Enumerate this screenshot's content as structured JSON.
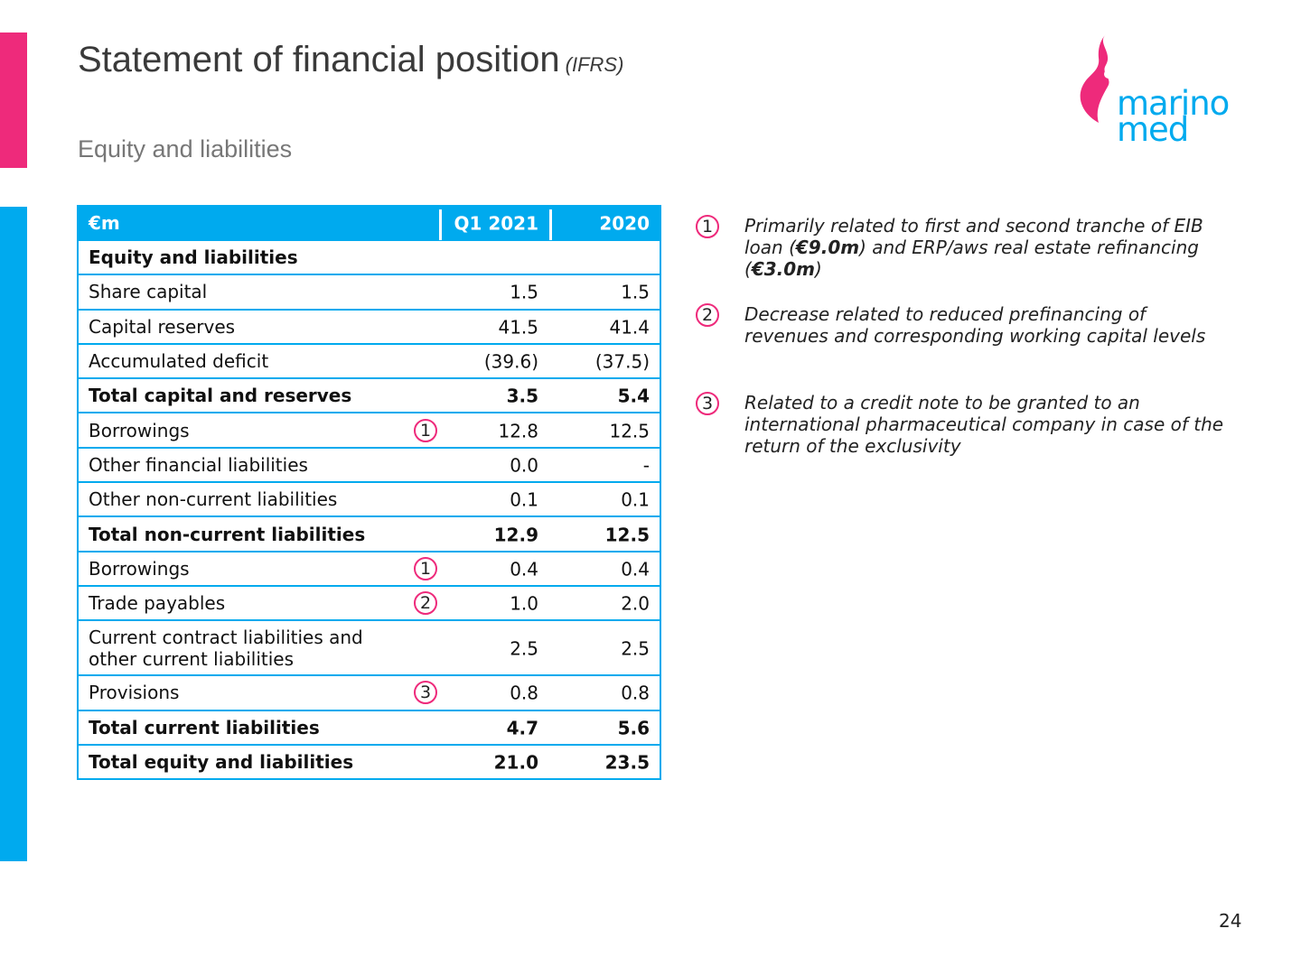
{
  "title": "Statement of financial position",
  "title_suffix": "(IFRS)",
  "subtitle": "Equity and liabilities",
  "logo": {
    "line1": "marino",
    "line2": "med"
  },
  "table": {
    "headers": [
      "€m",
      "Q1 2021",
      "2020"
    ],
    "rows": [
      {
        "label": "Equity and liabilities",
        "q1_2021": "",
        "y2020": "",
        "bold": true,
        "note": ""
      },
      {
        "label": "Share capital",
        "q1_2021": "1.5",
        "y2020": "1.5",
        "bold": false,
        "note": ""
      },
      {
        "label": "Capital reserves",
        "q1_2021": "41.5",
        "y2020": "41.4",
        "bold": false,
        "note": ""
      },
      {
        "label": "Accumulated deficit",
        "q1_2021": "(39.6)",
        "y2020": "(37.5)",
        "bold": false,
        "note": ""
      },
      {
        "label": "Total capital and reserves",
        "q1_2021": "3.5",
        "y2020": "5.4",
        "bold": true,
        "note": ""
      },
      {
        "label": "Borrowings",
        "q1_2021": "12.8",
        "y2020": "12.5",
        "bold": false,
        "note": "1"
      },
      {
        "label": "Other financial liabilities",
        "q1_2021": "0.0",
        "y2020": "-",
        "bold": false,
        "note": ""
      },
      {
        "label": "Other non-current liabilities",
        "q1_2021": "0.1",
        "y2020": "0.1",
        "bold": false,
        "note": ""
      },
      {
        "label": "Total non-current liabilities",
        "q1_2021": "12.9",
        "y2020": "12.5",
        "bold": true,
        "note": ""
      },
      {
        "label": "Borrowings",
        "q1_2021": "0.4",
        "y2020": "0.4",
        "bold": false,
        "note": "1"
      },
      {
        "label": "Trade payables",
        "q1_2021": "1.0",
        "y2020": "2.0",
        "bold": false,
        "note": "2"
      },
      {
        "label": "Current contract liabilities and",
        "label_line2": "other current liabilities",
        "q1_2021": "2.5",
        "y2020": "2.5",
        "bold": false,
        "note": ""
      },
      {
        "label": "Provisions",
        "q1_2021": "0.8",
        "y2020": "0.8",
        "bold": false,
        "note": "3"
      },
      {
        "label": "Total current liabilities",
        "q1_2021": "4.7",
        "y2020": "5.6",
        "bold": true,
        "note": ""
      },
      {
        "label": "Total equity and liabilities",
        "q1_2021": "21.0",
        "y2020": "23.5",
        "bold": true,
        "note": ""
      }
    ]
  },
  "notes": [
    {
      "num": "1",
      "line1": "Primarily related to first and second tranche of EIB",
      "line2_a": "loan (",
      "line2_b": "€9.0m",
      "line2_c": ") and ERP/aws real estate refinancing",
      "line3_a": "(",
      "line3_b": "€3.0m",
      "line3_c": ")"
    },
    {
      "num": "2",
      "line1": "Decrease related to reduced prefinancing of",
      "line2": "revenues and corresponding working capital levels"
    },
    {
      "num": "3",
      "line1": "Related to a credit note to be granted to an",
      "line2": "international pharmaceutical company in case of the",
      "line3": "return of the exclusivity"
    }
  ],
  "page_number": "24",
  "colors": {
    "pink": "#ee2a7b",
    "blue": "#00aaee"
  }
}
